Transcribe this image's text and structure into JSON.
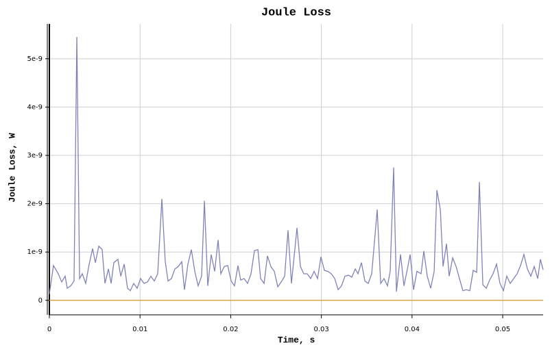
{
  "chart_data": {
    "type": "line",
    "title": "Joule Loss",
    "xlabel": "Time, s",
    "ylabel": "Joule Loss, W",
    "xlim": [
      0,
      0.05446
    ],
    "ylim": [
      -3e-10,
      5.72e-09
    ],
    "xticks": [
      0,
      0.01,
      0.02,
      0.03,
      0.04,
      0.05
    ],
    "yticks": [
      0,
      {
        "value": 1e-09,
        "label": "1e-9"
      },
      {
        "value": 2e-09,
        "label": "2e-9"
      },
      {
        "value": 3e-09,
        "label": "3e-9"
      },
      {
        "value": 4e-09,
        "label": "4e-9"
      },
      {
        "value": 5e-09,
        "label": "5e-9"
      }
    ],
    "grid": true,
    "series": [
      {
        "color": "#7e82b8",
        "x": [
          0,
          0.00045,
          0.00098,
          0.00136,
          0.00174,
          0.00197,
          0.00235,
          0.00272,
          0.00303,
          0.00333,
          0.00363,
          0.00401,
          0.00439,
          0.00477,
          0.00507,
          0.00545,
          0.00582,
          0.00613,
          0.00651,
          0.00681,
          0.00711,
          0.00756,
          0.00787,
          0.00825,
          0.00862,
          0.00893,
          0.0093,
          0.00968,
          0.01006,
          0.01044,
          0.01082,
          0.0112,
          0.01157,
          0.01195,
          0.01241,
          0.01278,
          0.01309,
          0.01346,
          0.01384,
          0.01422,
          0.0146,
          0.0149,
          0.01528,
          0.01566,
          0.01604,
          0.01641,
          0.01679,
          0.0171,
          0.01747,
          0.01785,
          0.01823,
          0.01861,
          0.01891,
          0.01929,
          0.01967,
          0.02005,
          0.02042,
          0.0208,
          0.0211,
          0.02148,
          0.02186,
          0.02224,
          0.02262,
          0.023,
          0.0233,
          0.02368,
          0.02405,
          0.02443,
          0.02481,
          0.02519,
          0.02557,
          0.02595,
          0.02632,
          0.0267,
          0.02731,
          0.02769,
          0.02806,
          0.02844,
          0.02882,
          0.0292,
          0.02958,
          0.02995,
          0.03033,
          0.03071,
          0.03109,
          0.03147,
          0.03185,
          0.03222,
          0.0326,
          0.03298,
          0.03336,
          0.03374,
          0.03404,
          0.03442,
          0.0348,
          0.03517,
          0.03555,
          0.03585,
          0.03616,
          0.03654,
          0.03691,
          0.03729,
          0.03759,
          0.03797,
          0.03828,
          0.03873,
          0.03911,
          0.03949,
          0.03979,
          0.04017,
          0.04054,
          0.041,
          0.0413,
          0.04168,
          0.04206,
          0.04244,
          0.04274,
          0.04312,
          0.04342,
          0.0438,
          0.0441,
          0.04448,
          0.04486,
          0.04523,
          0.04561,
          0.04599,
          0.04637,
          0.04675,
          0.04713,
          0.04743,
          0.04781,
          0.04819,
          0.04856,
          0.04894,
          0.04932,
          0.0497,
          0.05008,
          0.05045,
          0.05083,
          0.05121,
          0.05159,
          0.05197,
          0.05234,
          0.05272,
          0.0531,
          0.05348,
          0.05386,
          0.05416,
          0.05446
        ],
        "values": [
          1.3e-10,
          7.2e-10,
          5.5e-10,
          3.8e-10,
          5e-10,
          2.5e-10,
          3e-10,
          4e-10,
          5.45e-09,
          4.5e-10,
          5.5e-10,
          3.5e-10,
          7.5e-10,
          1.07e-09,
          7.8e-10,
          1.12e-09,
          1.05e-09,
          3.5e-10,
          6.5e-10,
          3.5e-10,
          7.8e-10,
          8.5e-10,
          5e-10,
          7.5e-10,
          2.5e-10,
          2e-10,
          3.5e-10,
          2.5e-10,
          4.5e-10,
          3.5e-10,
          3.8e-10,
          5e-10,
          4e-10,
          5.5e-10,
          2.1e-09,
          8e-10,
          4e-10,
          4.5e-10,
          6.5e-10,
          7e-10,
          8e-10,
          2.2e-10,
          7.5e-10,
          1.05e-09,
          6e-10,
          3e-10,
          5e-10,
          2.06e-09,
          3e-10,
          9.5e-10,
          6e-10,
          1.25e-09,
          5.5e-10,
          7e-10,
          7.2e-10,
          4e-10,
          3e-10,
          7.2e-10,
          4.2e-10,
          4.5e-10,
          3.5e-10,
          5.5e-10,
          1.03e-09,
          1.05e-09,
          4.5e-10,
          3.5e-10,
          9.2e-10,
          7e-10,
          6e-10,
          2.8e-10,
          3.8e-10,
          5e-10,
          1.45e-09,
          3.5e-10,
          1.5e-09,
          7e-10,
          5.5e-10,
          5.5e-10,
          4.5e-10,
          6e-10,
          4.5e-10,
          9e-10,
          6.2e-10,
          6e-10,
          5.5e-10,
          4.5e-10,
          2.2e-10,
          3e-10,
          5e-10,
          5.2e-10,
          4.8e-10,
          6.5e-10,
          5.5e-10,
          7.8e-10,
          4e-10,
          3.5e-10,
          5.5e-10,
          1.2e-09,
          1.88e-09,
          3.5e-10,
          4.5e-10,
          3e-10,
          6e-10,
          2.75e-09,
          1.8e-10,
          9.5e-10,
          3e-10,
          6.5e-10,
          9.5e-10,
          2.2e-10,
          6e-10,
          5.5e-10,
          1.02e-09,
          5e-10,
          2.5e-10,
          6e-10,
          2.28e-09,
          1.88e-09,
          7e-10,
          1.17e-09,
          5e-10,
          8.8e-10,
          7e-10,
          4.5e-10,
          2e-10,
          2.2e-10,
          2e-10,
          6.2e-10,
          5.8e-10,
          2.45e-09,
          3.2e-10,
          2.5e-10,
          4.2e-10,
          5.5e-10,
          7.5e-10,
          3.5e-10,
          2e-10,
          5e-10,
          3.5e-10,
          4.5e-10,
          5.5e-10,
          7.2e-10,
          9.5e-10,
          6.5e-10,
          5e-10,
          7e-10,
          4.5e-10,
          8.5e-10,
          6.3e-10
        ]
      },
      {
        "color": "#d4a13a",
        "x": [
          0,
          0.05446
        ],
        "values": [
          0,
          0
        ]
      }
    ]
  }
}
